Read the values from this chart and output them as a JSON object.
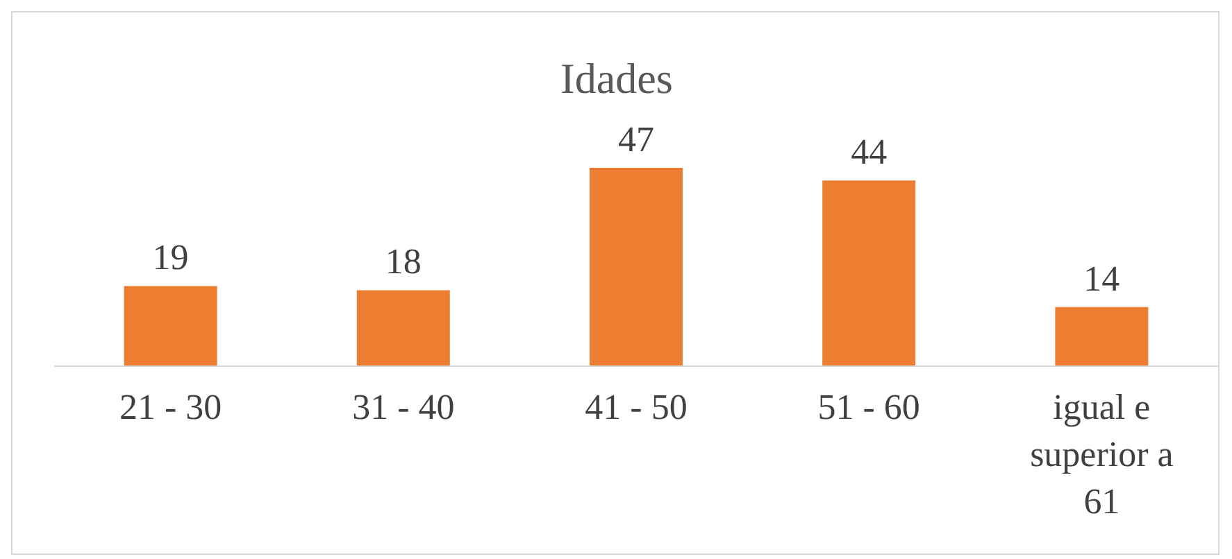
{
  "chart_data": {
    "type": "bar",
    "title": "Idades",
    "categories": [
      "21 - 30",
      "31 - 40",
      "41 - 50",
      "51 - 60",
      "igual e superior a 61"
    ],
    "values": [
      19,
      18,
      47,
      44,
      14
    ],
    "color": "#ed7d31",
    "data_labels": true
  }
}
